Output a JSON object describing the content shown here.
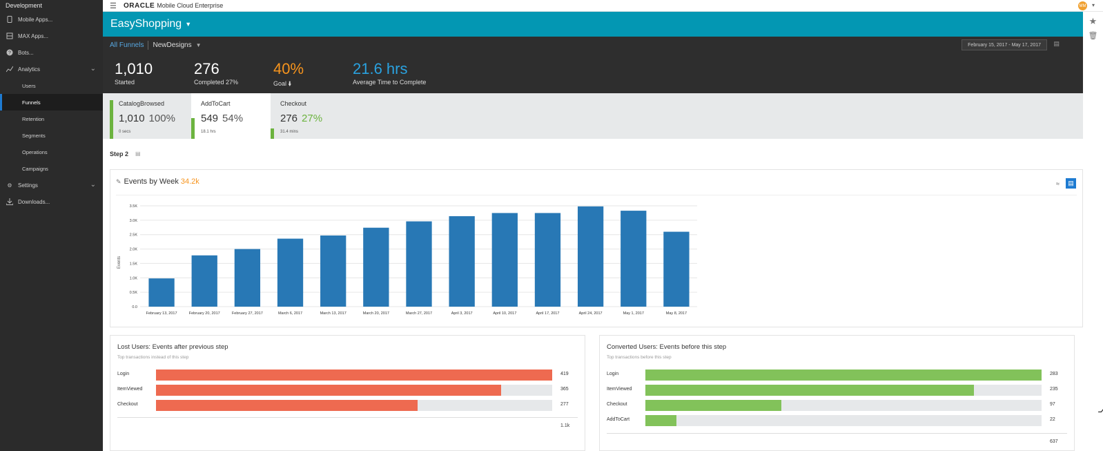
{
  "sidebar": {
    "title": "Development",
    "items": [
      {
        "label": "Mobile Apps...",
        "icon": "mobile-icon"
      },
      {
        "label": "MAX Apps...",
        "icon": "max-apps-icon"
      },
      {
        "label": "Bots...",
        "icon": "bots-icon"
      },
      {
        "label": "Analytics",
        "icon": "analytics-icon"
      }
    ],
    "analytics_sub": [
      "Users",
      "Funnels",
      "Retention",
      "Segments",
      "Operations",
      "Campaigns"
    ],
    "settings_label": "Settings",
    "downloads_label": "Downloads..."
  },
  "topbar": {
    "brand": "ORACLE",
    "product": "Mobile Cloud Enterprise",
    "avatar_initials": "MM"
  },
  "app": {
    "name": "EasyShopping"
  },
  "breadcrumb": {
    "all": "All Funnels",
    "current": "NewDesigns",
    "date_range": "February 15, 2017 - May 17, 2017"
  },
  "stats": {
    "started": {
      "value": "1,010",
      "label": "Started"
    },
    "completed": {
      "value": "276",
      "label": "Completed 27%"
    },
    "goal": {
      "value": "40%",
      "label": "Goal"
    },
    "avg": {
      "value": "21.6 hrs",
      "label": "Average Time to Complete"
    }
  },
  "steps": [
    {
      "name": "CatalogBrowsed",
      "count": "1,010",
      "percent": "100%",
      "time": "0 secs",
      "fraction": 1.0
    },
    {
      "name": "AddToCart",
      "count": "549",
      "percent": "54%",
      "time": "18.1 hrs",
      "fraction": 0.54
    },
    {
      "name": "Checkout",
      "count": "276",
      "percent": "27%",
      "time": "31.4 mins",
      "fraction": 0.27
    }
  ],
  "step_heading": "Step 2",
  "chart_panel": {
    "title": "Events by Week",
    "total": "34.2k"
  },
  "chart_data": {
    "type": "bar",
    "categories": [
      "February 13, 2017",
      "February 20, 2017",
      "February 27, 2017",
      "March 6, 2017",
      "March 13, 2017",
      "March 20, 2017",
      "March 27, 2017",
      "April 3, 2017",
      "April 10, 2017",
      "April 17, 2017",
      "April 24, 2017",
      "May 1, 2017",
      "May 8, 2017"
    ],
    "values": [
      980,
      1780,
      2000,
      2360,
      2470,
      2740,
      2960,
      3140,
      3250,
      3250,
      3480,
      3330,
      2600
    ],
    "ylabel": "Events",
    "yticks": [
      "0.0",
      "0.5K",
      "1.0K",
      "1.5K",
      "2.0K",
      "2.5K",
      "3.0K",
      "3.5K"
    ],
    "ylim": [
      0,
      3500
    ],
    "color": "#2878b5",
    "grid": true
  },
  "lost_panel": {
    "title": "Lost Users: Events after previous step",
    "subtitle": "Top transactions instead of this step",
    "color": "#ee6a50",
    "rows": [
      {
        "label": "Login",
        "value": "419",
        "fraction": 1.0
      },
      {
        "label": "ItemViewed",
        "value": "365",
        "fraction": 0.871
      },
      {
        "label": "Checkout",
        "value": "277",
        "fraction": 0.661
      }
    ],
    "total": "1.1k"
  },
  "converted_panel": {
    "title": "Converted Users: Events before this step",
    "subtitle": "Top transactions before this step",
    "color": "#82c25a",
    "rows": [
      {
        "label": "Login",
        "value": "283",
        "fraction": 1.0
      },
      {
        "label": "ItemViewed",
        "value": "235",
        "fraction": 0.83
      },
      {
        "label": "Checkout",
        "value": "97",
        "fraction": 0.343
      },
      {
        "label": "AddToCart",
        "value": "22",
        "fraction": 0.078
      }
    ],
    "total": "637"
  }
}
